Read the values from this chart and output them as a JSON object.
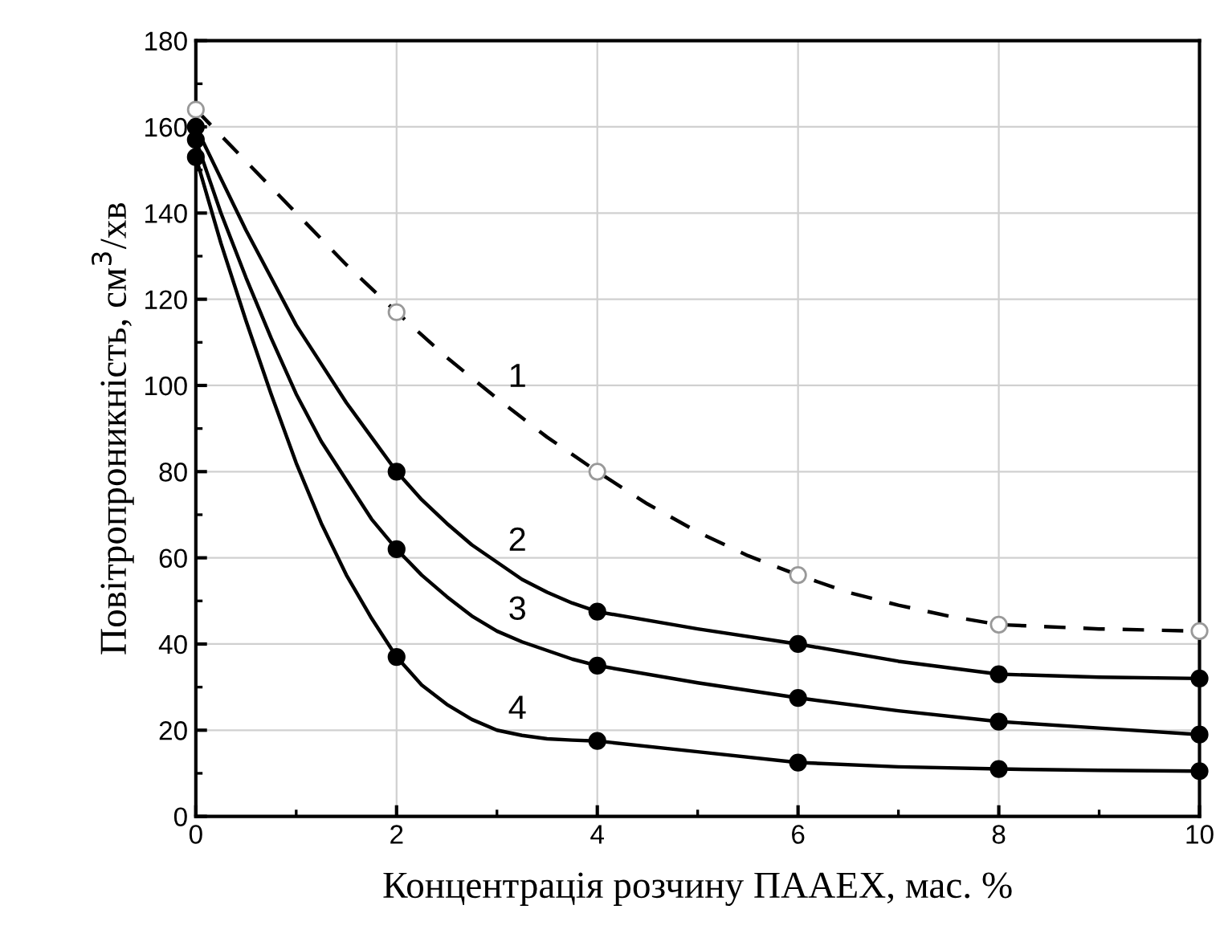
{
  "chart_data": {
    "type": "line",
    "xlabel": "Концентрація розчину ПААЕХ, мас. %",
    "ylabel": "Повітропроникність, см$^{3}$/хв",
    "x": [
      0,
      2,
      4,
      6,
      8,
      10
    ],
    "series": [
      {
        "name": "1",
        "color": "#000000",
        "line_style": "dashed",
        "marker": "none",
        "x": [
          0,
          0.5,
          1,
          1.5,
          2,
          2.5,
          3,
          3.5,
          4,
          4.5,
          5,
          5.5,
          6,
          6.5,
          7,
          7.5,
          8,
          9,
          10
        ],
        "values": [
          164,
          152,
          140,
          128,
          117,
          106.5,
          97,
          88,
          80,
          72.5,
          66,
          60.5,
          56,
          52,
          49,
          46.5,
          44.5,
          43.5,
          43
        ]
      },
      {
        "name": "2",
        "color": "#000000",
        "line_style": "solid",
        "marker": "none",
        "x": [
          0,
          0.25,
          0.5,
          0.75,
          1,
          1.25,
          1.5,
          1.75,
          2,
          2.25,
          2.5,
          2.75,
          3,
          3.25,
          3.5,
          3.75,
          4,
          5,
          6,
          7,
          8,
          9,
          10
        ],
        "values": [
          160,
          148,
          136,
          125,
          114,
          105,
          96,
          88,
          80,
          73.5,
          68,
          63,
          59,
          55,
          52,
          49.5,
          47.5,
          43.5,
          40,
          36,
          33,
          32.3,
          32
        ]
      },
      {
        "name": "3",
        "color": "#000000",
        "line_style": "solid",
        "marker": "none",
        "x": [
          0,
          0.25,
          0.5,
          0.75,
          1,
          1.25,
          1.5,
          1.75,
          2,
          2.25,
          2.5,
          2.75,
          3,
          3.25,
          3.5,
          3.75,
          4,
          5,
          6,
          7,
          8,
          9,
          10
        ],
        "values": [
          157,
          140,
          125,
          111,
          98,
          87,
          78,
          69,
          62,
          56,
          51,
          46.5,
          43,
          40.5,
          38.5,
          36.5,
          35,
          31,
          27.5,
          24.5,
          22,
          20.5,
          19
        ]
      },
      {
        "name": "4",
        "color": "#000000",
        "line_style": "solid",
        "marker": "none",
        "x": [
          0,
          0.25,
          0.5,
          0.75,
          1,
          1.25,
          1.5,
          1.75,
          2,
          2.25,
          2.5,
          2.75,
          3,
          3.25,
          3.5,
          3.75,
          4,
          5,
          6,
          7,
          8,
          9,
          10
        ],
        "values": [
          153,
          133,
          115,
          98,
          82,
          68,
          56,
          46,
          37,
          30.5,
          26,
          22.5,
          20,
          18.8,
          18,
          17.7,
          17.5,
          15,
          12.5,
          11.5,
          11,
          10.7,
          10.5
        ]
      },
      {
        "type": "scatter",
        "color": "#999999",
        "marker": "circle",
        "values": [
          164,
          117,
          80,
          56,
          44.5,
          43
        ]
      },
      {
        "type": "scatter",
        "color": "#000000",
        "marker": "circle",
        "values": [
          160,
          80,
          47.5,
          40,
          33,
          32
        ]
      },
      {
        "type": "scatter",
        "color": "#000000",
        "marker": "circle",
        "values": [
          157,
          62,
          35,
          27.5,
          22,
          19
        ]
      },
      {
        "type": "scatter",
        "color": "#000000",
        "marker": "circle",
        "values": [
          153,
          37,
          17.5,
          12.5,
          11,
          10.5
        ]
      }
    ],
    "xlim": [
      0,
      10
    ],
    "xticks": [
      0,
      2,
      4,
      6,
      8,
      10
    ],
    "ylim": [
      0,
      180
    ],
    "yticks": [
      0,
      20,
      40,
      60,
      80,
      100,
      120,
      140,
      160,
      180
    ],
    "grid": true,
    "legend": false
  }
}
